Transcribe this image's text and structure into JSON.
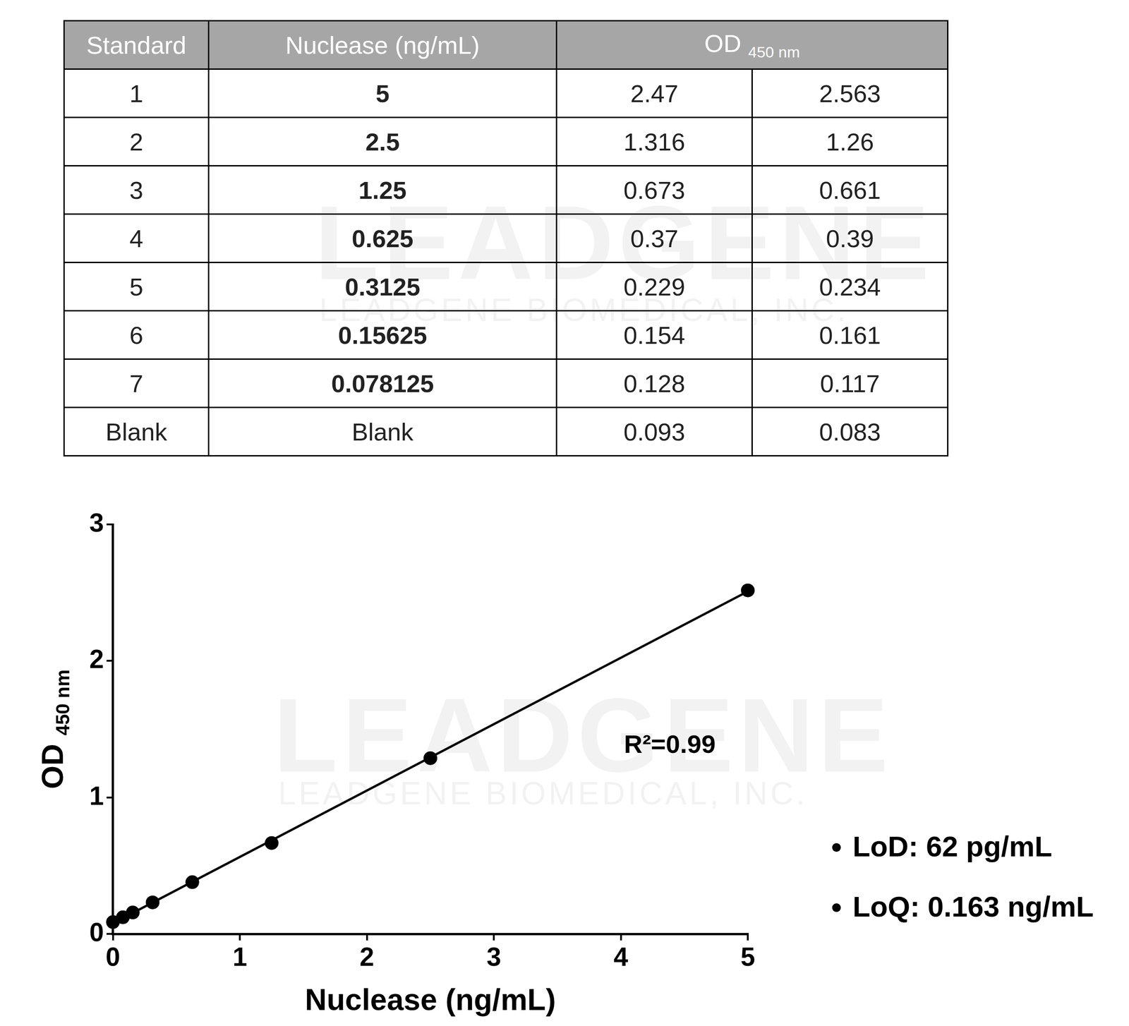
{
  "table": {
    "header": [
      "Standard",
      "Nuclease (ng/mL)",
      {
        "text": "OD",
        "subscript": "450 nm"
      }
    ],
    "rows": [
      [
        "1",
        "5",
        "2.47",
        "2.563"
      ],
      [
        "2",
        "2.5",
        "1.316",
        "1.26"
      ],
      [
        "3",
        "1.25",
        "0.673",
        "0.661"
      ],
      [
        "4",
        "0.625",
        "0.37",
        "0.39"
      ],
      [
        "5",
        "0.3125",
        "0.229",
        "0.234"
      ],
      [
        "6",
        "0.15625",
        "0.154",
        "0.161"
      ],
      [
        "7",
        "0.078125",
        "0.128",
        "0.117"
      ],
      [
        "Blank",
        "Blank",
        "0.093",
        "0.083"
      ]
    ]
  },
  "chart_data": {
    "type": "scatter",
    "xlabel": "Nuclease (ng/mL)",
    "ylabel": {
      "text": "OD",
      "subscript": "450 nm"
    },
    "annotation": "R²=0.99",
    "x": [
      5,
      2.5,
      1.25,
      0.625,
      0.3125,
      0.15625,
      0.078125,
      0
    ],
    "series": [
      {
        "values": [
          2.517,
          1.288,
          0.667,
          0.38,
          0.232,
          0.158,
          0.123,
          0.088
        ],
        "color": "#000000",
        "marker": "circle"
      },
      {
        "type": "line",
        "x": [
          0,
          5
        ],
        "values": [
          0.079,
          2.509
        ],
        "color": "#000000",
        "line_style": "solid"
      }
    ],
    "xlim": [
      0,
      5
    ],
    "xticks": [
      0,
      1,
      2,
      3,
      4,
      5
    ],
    "ylim": [
      0,
      3
    ],
    "yticks": [
      0,
      1,
      2,
      3
    ],
    "grid": false
  },
  "notes": [
    "LoD: 62 pg/mL",
    "LoQ: 0.163 ng/mL"
  ],
  "watermark": [
    "LEADGENE",
    "LEADGENE BIOMEDICAL, INC."
  ]
}
